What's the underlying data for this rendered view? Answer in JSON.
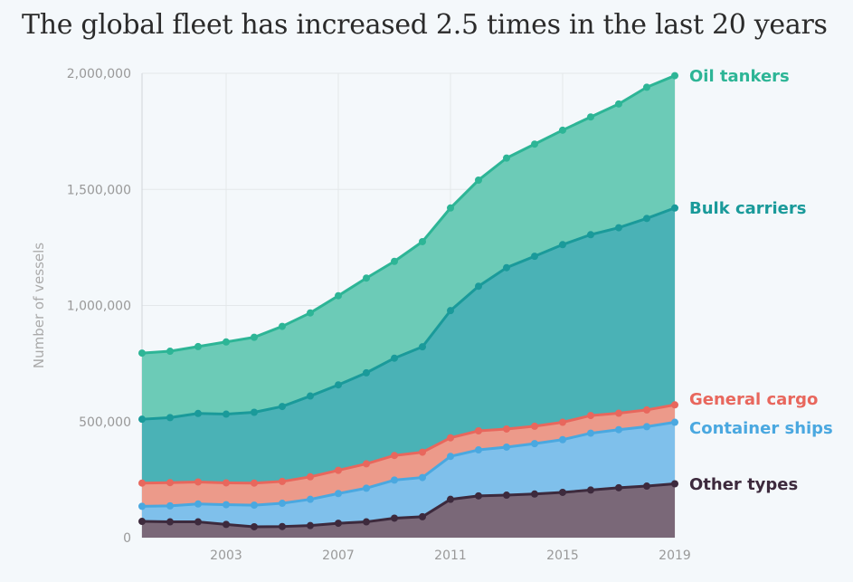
{
  "chart_data": {
    "type": "area",
    "stacked": true,
    "title": "The global fleet has increased 2.5 times in the last 20 years",
    "ylabel": "Number of vessels",
    "xlabel": "",
    "x": [
      2000,
      2001,
      2002,
      2003,
      2004,
      2005,
      2006,
      2007,
      2008,
      2009,
      2010,
      2011,
      2012,
      2013,
      2014,
      2015,
      2016,
      2017,
      2018,
      2019
    ],
    "xlim": [
      2000,
      2019
    ],
    "ylim": [
      0,
      2000000
    ],
    "x_ticks": [
      2003,
      2007,
      2011,
      2015,
      2019
    ],
    "x_tick_labels": [
      "2003",
      "2007",
      "2011",
      "2015",
      "2019"
    ],
    "y_ticks": [
      0,
      500000,
      1000000,
      1500000,
      2000000
    ],
    "y_tick_labels": [
      "0",
      "500,000",
      "1,000,000",
      "1,500,000",
      "2,000,000"
    ],
    "grid": true,
    "legend": "right",
    "series": [
      {
        "name": "Other types",
        "color": "#3d2a3d",
        "fill": "#7a6878",
        "cumulative": [
          70000,
          68000,
          68000,
          57000,
          47000,
          48000,
          52000,
          62000,
          68000,
          84000,
          90000,
          165000,
          180000,
          183000,
          188000,
          195000,
          205000,
          215000,
          222000,
          232000
        ]
      },
      {
        "name": "Container ships",
        "color": "#4aa8e0",
        "fill": "#7fc0eb",
        "cumulative": [
          135000,
          137000,
          145000,
          142000,
          140000,
          148000,
          165000,
          190000,
          213000,
          248000,
          259000,
          350000,
          378000,
          390000,
          405000,
          422000,
          450000,
          465000,
          478000,
          497000
        ]
      },
      {
        "name": "General cargo",
        "color": "#e8675d",
        "fill": "#ec9a8a",
        "cumulative": [
          235000,
          237000,
          240000,
          236000,
          235000,
          242000,
          262000,
          290000,
          318000,
          354000,
          368000,
          430000,
          460000,
          468000,
          480000,
          497000,
          526000,
          536000,
          550000,
          572000
        ]
      },
      {
        "name": "Bulk carriers",
        "color": "#1a9a9a",
        "fill": "#4ab2b6",
        "cumulative": [
          510000,
          517000,
          535000,
          532000,
          540000,
          565000,
          610000,
          658000,
          710000,
          773000,
          822000,
          978000,
          1083000,
          1163000,
          1212000,
          1262000,
          1305000,
          1335000,
          1375000,
          1420000
        ]
      },
      {
        "name": "Oil tankers",
        "color": "#2db596",
        "fill": "#6ccbb7",
        "cumulative": [
          795000,
          803000,
          823000,
          843000,
          863000,
          910000,
          968000,
          1042000,
          1118000,
          1190000,
          1275000,
          1420000,
          1540000,
          1635000,
          1695000,
          1755000,
          1812000,
          1868000,
          1940000,
          1990000
        ]
      }
    ]
  }
}
